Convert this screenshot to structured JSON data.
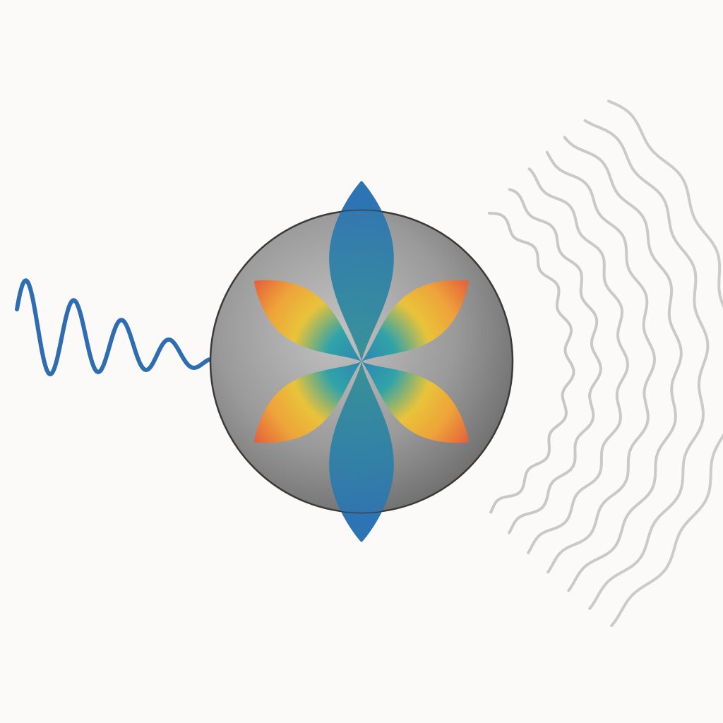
{
  "colors": {
    "background": "#fbfaf8",
    "incident_wave": "#2f6db3",
    "scattered_wave": "#a6a6a6",
    "sphere_light": "#c2c2c2",
    "sphere_dark": "#6d6d6d",
    "sphere_outline": "#3a3a3a",
    "axial_lobe": "#2c74b4",
    "axial_lobe_center": "#2f8f95",
    "diagonal_lobe_outer": "#e2503a",
    "diagonal_lobe_mid": "#eea33a",
    "diagonal_lobe_inner": "#30a3a8"
  },
  "diagram": {
    "description_visible_text": "",
    "elements": [
      "incident-wave",
      "sphere",
      "axial-lobes",
      "diagonal-lobes",
      "scattered-wavefronts"
    ],
    "scattered_wavefront_count": 7,
    "diagonal_lobe_count": 4,
    "axial_lobe_count": 2
  }
}
